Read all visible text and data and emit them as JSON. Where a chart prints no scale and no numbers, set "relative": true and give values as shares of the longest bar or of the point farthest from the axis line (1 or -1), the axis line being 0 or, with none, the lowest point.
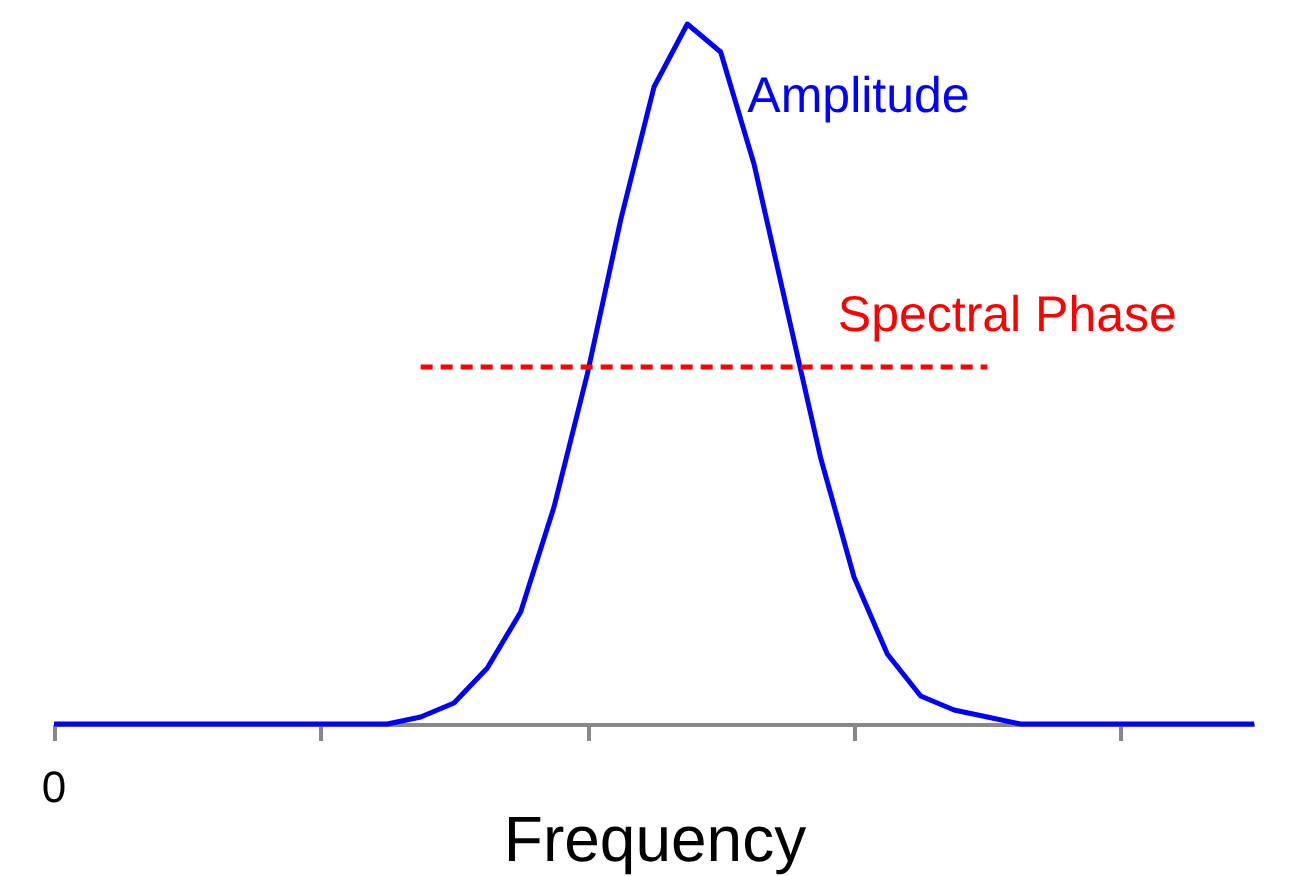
{
  "chart_data": {
    "type": "line",
    "relative": true,
    "xlabel": "Frequency",
    "annotations": [
      "0"
    ],
    "categories": [
      null,
      null,
      null,
      null,
      null,
      null,
      null,
      null,
      null,
      null,
      null,
      null,
      null,
      null,
      null,
      null,
      null,
      null,
      null,
      null,
      null,
      null,
      null,
      null,
      null,
      null,
      null,
      null,
      null,
      null,
      null,
      null,
      null,
      null,
      null,
      null,
      null
    ],
    "series": [
      {
        "name": "Amplitude",
        "color": "#0000ff",
        "values": [
          0,
          0,
          0,
          0,
          0,
          0,
          0,
          0,
          0,
          0,
          0,
          0.01,
          0.03,
          0.08,
          0.16,
          0.31,
          0.5,
          0.72,
          0.91,
          1,
          0.96,
          0.8,
          0.59,
          0.38,
          0.21,
          0.1,
          0.04,
          0.02,
          0.01,
          0,
          0,
          0,
          0,
          0,
          0,
          0,
          0
        ]
      },
      {
        "name": "Spectral Phase",
        "color": "#ff0000",
        "line_style": "dashed",
        "values": [
          null,
          null,
          null,
          null,
          null,
          null,
          null,
          null,
          null,
          null,
          null,
          0.51,
          0.51,
          0.51,
          0.51,
          0.51,
          0.51,
          0.51,
          0.51,
          0.51,
          0.51,
          0.51,
          0.51,
          0.51,
          0.51,
          0.51,
          0.51,
          0.51,
          0.51,
          null,
          null,
          null,
          null,
          null,
          null,
          null,
          null
        ]
      }
    ],
    "grid": false
  }
}
